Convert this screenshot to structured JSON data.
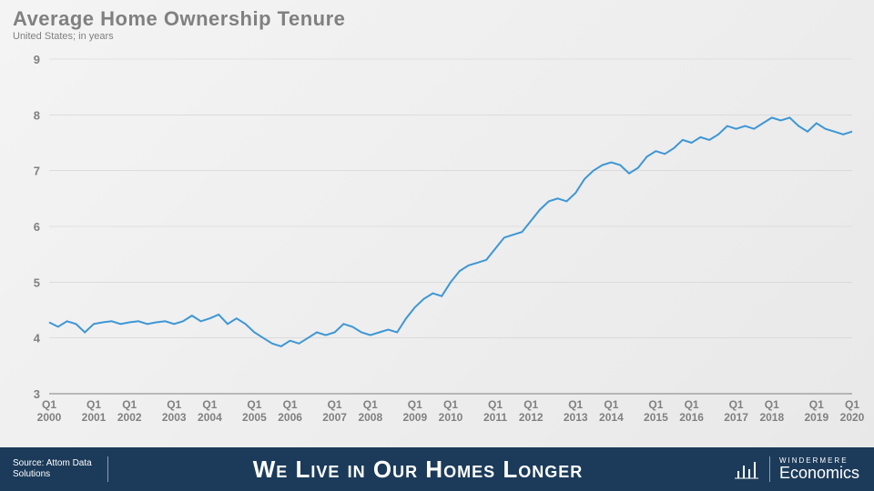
{
  "title": "Average Home Ownership Tenure",
  "subtitle": "United States; in years",
  "footer": {
    "source_label": "Source: Attom Data",
    "source_label2": "Solutions",
    "headline": "We Live in Our Homes Longer",
    "logo_top": "WINDERMERE",
    "logo_bottom": "Economics",
    "background_color": "#1c3b5a"
  },
  "chart": {
    "type": "line",
    "line_color": "#3d96d6",
    "line_width": 2,
    "background": "transparent",
    "axis_color": "#808080",
    "grid_color": "#d0d0d0",
    "label_fontsize": 13,
    "xlabel_fontsize": 12,
    "ylim": [
      3,
      9
    ],
    "yticks": [
      3,
      4,
      5,
      6,
      7,
      8,
      9
    ],
    "xticks": [
      "Q1\n2000",
      "Q1\n2001",
      "Q1\n2002",
      "Q1\n2003",
      "Q1\n2004",
      "Q1\n2005",
      "Q1\n2006",
      "Q1\n2007",
      "Q1\n2008",
      "Q1\n2009",
      "Q1\n2010",
      "Q1\n2011",
      "Q1\n2012",
      "Q1\n2013",
      "Q1\n2014",
      "Q1\n2015",
      "Q1\n2016",
      "Q1\n2017",
      "Q1\n2018",
      "Q1\n2019",
      "Q1\n2020"
    ],
    "values": [
      4.28,
      4.2,
      4.3,
      4.25,
      4.1,
      4.25,
      4.28,
      4.3,
      4.25,
      4.28,
      4.3,
      4.25,
      4.28,
      4.3,
      4.25,
      4.3,
      4.4,
      4.3,
      4.35,
      4.42,
      4.25,
      4.35,
      4.25,
      4.1,
      4.0,
      3.9,
      3.85,
      3.95,
      3.9,
      4.0,
      4.1,
      4.05,
      4.1,
      4.25,
      4.2,
      4.1,
      4.05,
      4.1,
      4.15,
      4.1,
      4.35,
      4.55,
      4.7,
      4.8,
      4.75,
      5.0,
      5.2,
      5.3,
      5.35,
      5.4,
      5.6,
      5.8,
      5.85,
      5.9,
      6.1,
      6.3,
      6.45,
      6.5,
      6.45,
      6.6,
      6.85,
      7.0,
      7.1,
      7.15,
      7.1,
      6.95,
      7.05,
      7.25,
      7.35,
      7.3,
      7.4,
      7.55,
      7.5,
      7.6,
      7.55,
      7.65,
      7.8,
      7.75,
      7.8,
      7.75,
      7.85,
      7.95,
      7.9,
      7.95,
      7.8,
      7.7,
      7.85,
      7.75,
      7.7,
      7.65,
      7.7
    ]
  }
}
